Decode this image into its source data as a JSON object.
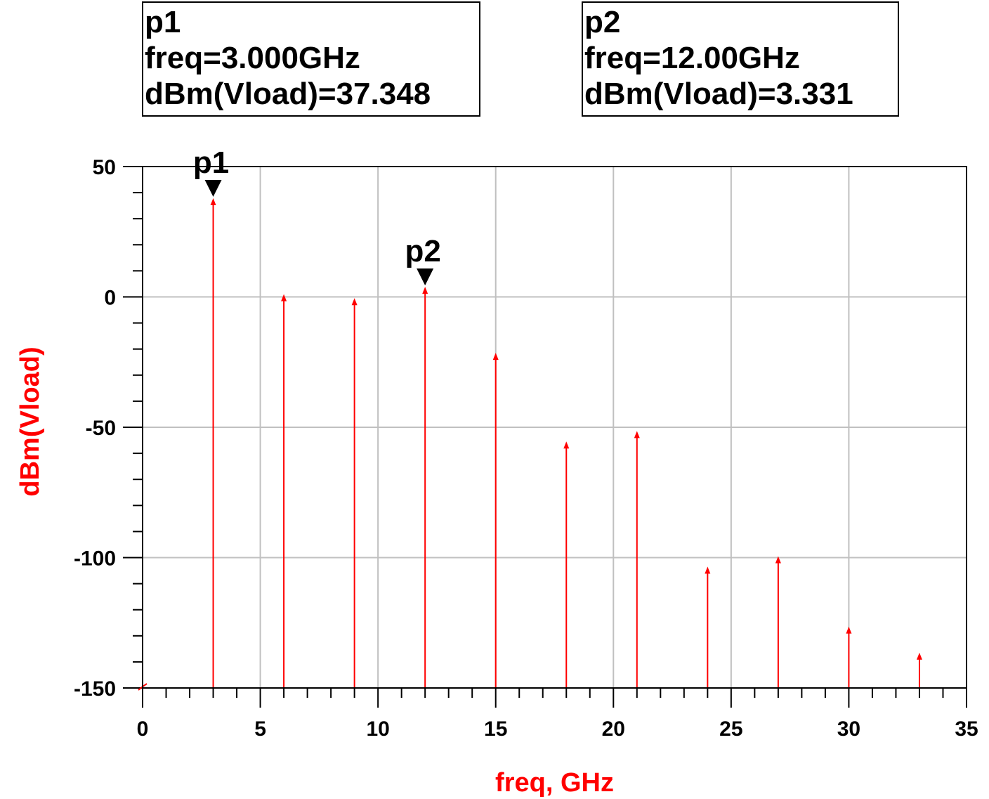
{
  "markers": [
    {
      "name": "p1",
      "freq_text": "freq=3.000GHz",
      "value_text": "dBm(Vload)=37.348",
      "freq": 3,
      "value": 37.348
    },
    {
      "name": "p2",
      "freq_text": "freq=12.00GHz",
      "value_text": "dBm(Vload)=3.331",
      "freq": 12,
      "value": 3.331
    }
  ],
  "colors": {
    "trace": "#ff0000",
    "axis_label": "#ff0000",
    "grid": "#c0c0c0",
    "frame": "#000000",
    "marker": "#000000"
  },
  "chart_data": {
    "type": "bar",
    "style": "spectrum-stem",
    "xlabel": "freq, GHz",
    "ylabel": "dBm(Vload)",
    "xlim": [
      0,
      35
    ],
    "ylim": [
      -150,
      50
    ],
    "x_ticks": [
      0,
      5,
      10,
      15,
      20,
      25,
      30,
      35
    ],
    "y_ticks": [
      50,
      0,
      -50,
      -100,
      -150
    ],
    "x_minor_step": 1,
    "y_minor_step": 10,
    "grid": true,
    "legend": "none",
    "series": [
      {
        "x": [
          0,
          3,
          6,
          9,
          12,
          15,
          18,
          21,
          24,
          27,
          30,
          33
        ],
        "y": [
          -150,
          37.348,
          0.5,
          -1,
          3.331,
          -22,
          -56,
          -52,
          -104,
          -100,
          -127,
          -137
        ]
      }
    ]
  }
}
